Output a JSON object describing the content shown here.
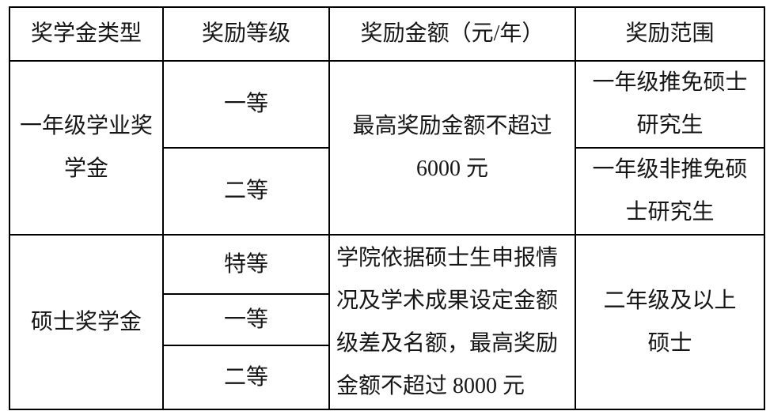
{
  "table": {
    "header": {
      "type": "奖学金类型",
      "level": "奖励等级",
      "amount": "奖励金额（元/年）",
      "scope": "奖励范围"
    },
    "first_year_block": {
      "type": "一年级学业奖\n学金",
      "level_1": "一等",
      "level_2": "二等",
      "amount": "最高奖励金额不超过\n6000 元",
      "scope_1": "一年级推免硕士\n研究生",
      "scope_2": "一年级非推免硕\n士研究生"
    },
    "master_block": {
      "type": "硕士奖学金",
      "level_1": "特等",
      "level_2": "一等",
      "level_3": "二等",
      "amount": "学院依据硕士生申报情\n况及学术成果设定金额\n级差及名额，最高奖励\n金额不超过 8000 元",
      "scope": "二年级及以上\n硕士"
    }
  }
}
